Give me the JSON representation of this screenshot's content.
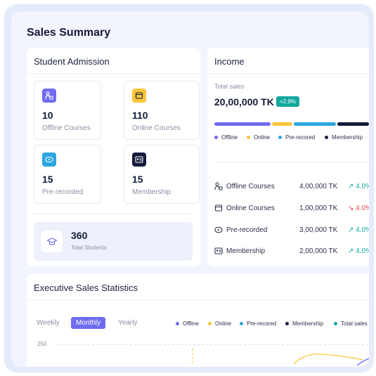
{
  "page": {
    "title": "Sales Summary"
  },
  "admission": {
    "title": "Student Admission",
    "tiles": [
      {
        "value": "10",
        "label": "Offline Courses",
        "icon": "offline-courses-icon",
        "color": "#6f6cf0"
      },
      {
        "value": "110",
        "label": "Online Courses",
        "icon": "online-courses-icon",
        "color": "#f9c53a"
      },
      {
        "value": "15",
        "label": "Pre-recorded",
        "icon": "pre-recorded-icon",
        "color": "#2ba6e0"
      },
      {
        "value": "15",
        "label": "Membership",
        "icon": "membership-icon",
        "color": "#141b3a"
      }
    ],
    "total": {
      "value": "360",
      "label": "Total Students",
      "icon": "graduation-cap-icon"
    }
  },
  "income": {
    "title": "Income",
    "total_label": "Total sales",
    "total_value": "20,00,000 TK",
    "badge": "+2.9%",
    "distribution": [
      {
        "name": "Offline",
        "share": 0.37,
        "color": "#6f6cf0"
      },
      {
        "name": "Online",
        "share": 0.14,
        "color": "#f9c53a"
      },
      {
        "name": "Pre-recored",
        "share": 0.28,
        "color": "#2ba6e0"
      },
      {
        "name": "Membership",
        "share": 0.21,
        "color": "#141b3a"
      }
    ],
    "legend": [
      "Offline",
      "Online",
      "Pre-recored",
      "Membership"
    ],
    "rows": [
      {
        "name": "Offline Courses",
        "amount": "4,00,000 TK",
        "change": "4.0%",
        "trend": "up",
        "icon": "offline-courses-icon"
      },
      {
        "name": "Online Courses",
        "amount": "1,00,000 TK",
        "change": "4.0%",
        "trend": "down",
        "icon": "online-courses-icon"
      },
      {
        "name": "Pre-recorded",
        "amount": "3,00,000 TK",
        "change": "4.0%",
        "trend": "up",
        "icon": "pre-recorded-icon"
      },
      {
        "name": "Membership",
        "amount": "2,00,000 TK",
        "change": "4.0%",
        "trend": "up",
        "icon": "membership-icon"
      }
    ],
    "colors": {
      "up": "#13a89e",
      "down": "#e5484d"
    }
  },
  "stats": {
    "title": "Executive Sales Statistics",
    "periods": [
      "Weekly",
      "Monthly",
      "Yearly"
    ],
    "active_period": "Monthly",
    "legend": [
      {
        "name": "Offline",
        "color": "#6f6cf0"
      },
      {
        "name": "Online",
        "color": "#f9c53a"
      },
      {
        "name": "Pre-recored",
        "color": "#2ba6e0"
      },
      {
        "name": "Membership",
        "color": "#141b3a"
      },
      {
        "name": "Total sales",
        "color": "#13a89e"
      }
    ],
    "y_tick": "250"
  }
}
